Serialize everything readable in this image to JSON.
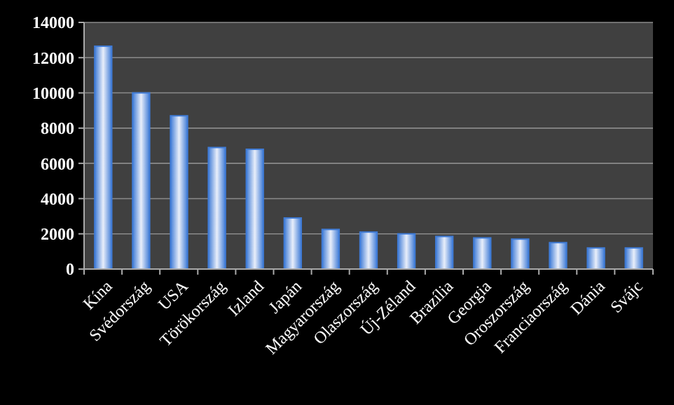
{
  "chart_data": {
    "type": "bar",
    "categories": [
      "Kína",
      "Svédország",
      "USA",
      "Törökország",
      "Izland",
      "Japán",
      "Magyarország",
      "Olaszország",
      "Új-Zéland",
      "Brazília",
      "Georgia",
      "Oroszország",
      "Franciaország",
      "Dánia",
      "Svájc"
    ],
    "values": [
      12650,
      10000,
      8700,
      6900,
      6800,
      2900,
      2250,
      2100,
      2000,
      1850,
      1770,
      1700,
      1500,
      1200,
      1200
    ],
    "color": "#3f7bd6",
    "ylim": [
      0,
      14000
    ],
    "yticks": [
      0,
      2000,
      4000,
      6000,
      8000,
      10000,
      12000,
      14000
    ],
    "grid": "y"
  }
}
